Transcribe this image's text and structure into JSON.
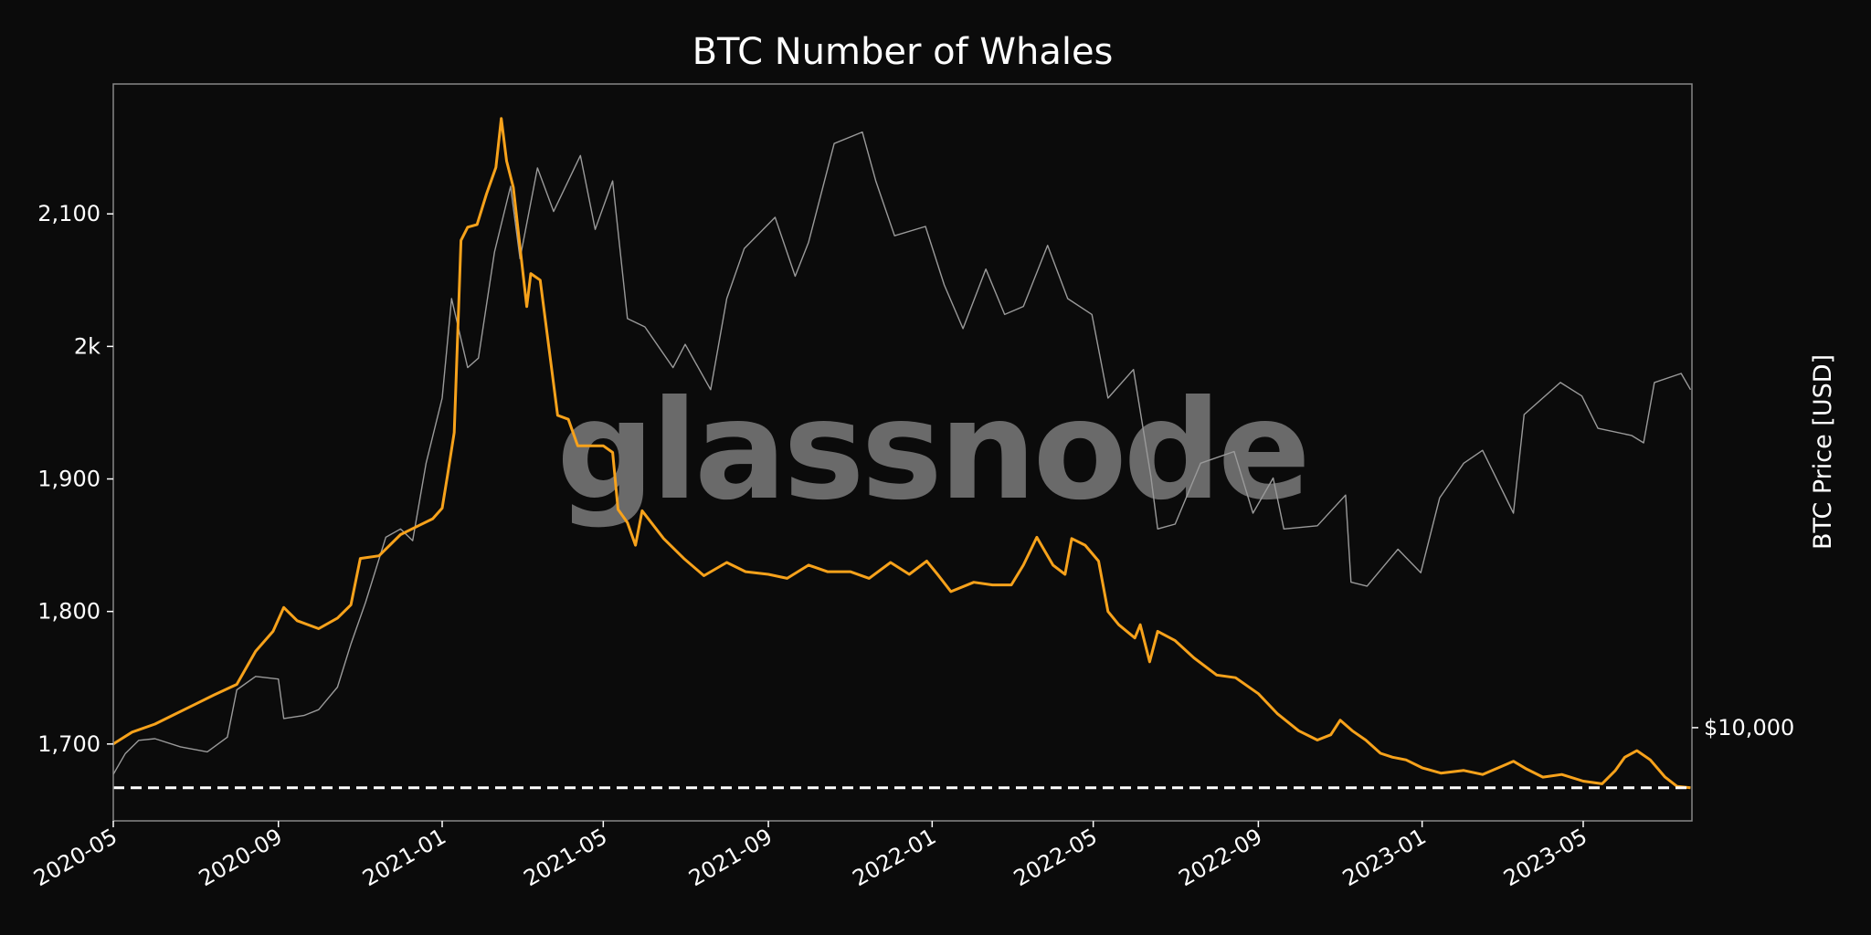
{
  "chart_data": {
    "type": "line",
    "title": "BTC Number of Whales",
    "watermark": "glassnode",
    "xlabel": "",
    "ylabel": "",
    "y2label": "BTC Price [USD]",
    "x_tick_labels": [
      "2020-05",
      "2020-09",
      "2021-01",
      "2021-05",
      "2021-09",
      "2022-01",
      "2022-05",
      "2022-09",
      "2023-01",
      "2023-05"
    ],
    "x_ticks": [
      "2020-05-01",
      "2020-09-01",
      "2021-01-01",
      "2021-05-01",
      "2021-09-01",
      "2022-01-01",
      "2022-05-01",
      "2022-09-01",
      "2023-01-01",
      "2023-05-01"
    ],
    "xlim": [
      "2020-05-01",
      "2023-07-21"
    ],
    "ylim": [
      1642,
      2198
    ],
    "y_ticks": [
      1700,
      1800,
      1900,
      2000,
      2100
    ],
    "y_tick_labels": [
      "1,700",
      "1,800",
      "1,900",
      "2k",
      "2,100"
    ],
    "y2_scale": "log",
    "y2lim": [
      7400,
      80000
    ],
    "y2_ticks": [
      10000
    ],
    "y2_tick_labels": [
      "$10,000"
    ],
    "grid": false,
    "colors": {
      "whales": "#f7a21b",
      "price": "#9a9a9a",
      "min_line": "#ffffff",
      "background": "#0b0b0b",
      "frame": "#888888"
    },
    "series": [
      {
        "axis": "left",
        "points": [
          [
            "2020-05-01",
            1700
          ],
          [
            "2020-05-15",
            1709
          ],
          [
            "2020-06-01",
            1715
          ],
          [
            "2020-06-15",
            1722
          ],
          [
            "2020-07-01",
            1730
          ],
          [
            "2020-07-15",
            1737
          ],
          [
            "2020-08-01",
            1745
          ],
          [
            "2020-08-15",
            1770
          ],
          [
            "2020-08-28",
            1785
          ],
          [
            "2020-09-05",
            1803
          ],
          [
            "2020-09-15",
            1793
          ],
          [
            "2020-10-01",
            1787
          ],
          [
            "2020-10-15",
            1795
          ],
          [
            "2020-10-25",
            1805
          ],
          [
            "2020-11-01",
            1840
          ],
          [
            "2020-11-15",
            1842
          ],
          [
            "2020-12-01",
            1858
          ],
          [
            "2020-12-15",
            1865
          ],
          [
            "2020-12-25",
            1870
          ],
          [
            "2021-01-01",
            1878
          ],
          [
            "2021-01-05",
            1903
          ],
          [
            "2021-01-10",
            1935
          ],
          [
            "2021-01-15",
            2080
          ],
          [
            "2021-01-20",
            2090
          ],
          [
            "2021-01-27",
            2092
          ],
          [
            "2021-02-03",
            2115
          ],
          [
            "2021-02-10",
            2135
          ],
          [
            "2021-02-14",
            2172
          ],
          [
            "2021-02-18",
            2140
          ],
          [
            "2021-02-23",
            2120
          ],
          [
            "2021-02-28",
            2075
          ],
          [
            "2021-03-05",
            2030
          ],
          [
            "2021-03-08",
            2055
          ],
          [
            "2021-03-15",
            2050
          ],
          [
            "2021-03-22",
            1995
          ],
          [
            "2021-03-28",
            1948
          ],
          [
            "2021-04-05",
            1945
          ],
          [
            "2021-04-12",
            1925
          ],
          [
            "2021-04-20",
            1925
          ],
          [
            "2021-05-01",
            1925
          ],
          [
            "2021-05-08",
            1920
          ],
          [
            "2021-05-12",
            1877
          ],
          [
            "2021-05-19",
            1867
          ],
          [
            "2021-05-25",
            1850
          ],
          [
            "2021-05-30",
            1876
          ],
          [
            "2021-06-15",
            1855
          ],
          [
            "2021-06-30",
            1840
          ],
          [
            "2021-07-15",
            1827
          ],
          [
            "2021-08-01",
            1837
          ],
          [
            "2021-08-15",
            1830
          ],
          [
            "2021-09-01",
            1828
          ],
          [
            "2021-09-15",
            1825
          ],
          [
            "2021-10-01",
            1835
          ],
          [
            "2021-10-15",
            1830
          ],
          [
            "2021-11-01",
            1830
          ],
          [
            "2021-11-15",
            1825
          ],
          [
            "2021-12-01",
            1837
          ],
          [
            "2021-12-15",
            1828
          ],
          [
            "2021-12-28",
            1838
          ],
          [
            "2022-01-05",
            1828
          ],
          [
            "2022-01-15",
            1815
          ],
          [
            "2022-02-01",
            1822
          ],
          [
            "2022-02-15",
            1820
          ],
          [
            "2022-03-01",
            1820
          ],
          [
            "2022-03-10",
            1835
          ],
          [
            "2022-03-20",
            1856
          ],
          [
            "2022-04-01",
            1835
          ],
          [
            "2022-04-10",
            1828
          ],
          [
            "2022-04-15",
            1855
          ],
          [
            "2022-04-25",
            1850
          ],
          [
            "2022-05-05",
            1838
          ],
          [
            "2022-05-12",
            1800
          ],
          [
            "2022-05-20",
            1790
          ],
          [
            "2022-06-01",
            1780
          ],
          [
            "2022-06-05",
            1790
          ],
          [
            "2022-06-12",
            1762
          ],
          [
            "2022-06-18",
            1785
          ],
          [
            "2022-07-01",
            1778
          ],
          [
            "2022-07-15",
            1765
          ],
          [
            "2022-08-01",
            1752
          ],
          [
            "2022-08-15",
            1750
          ],
          [
            "2022-09-01",
            1738
          ],
          [
            "2022-09-15",
            1723
          ],
          [
            "2022-10-01",
            1710
          ],
          [
            "2022-10-15",
            1703
          ],
          [
            "2022-10-25",
            1707
          ],
          [
            "2022-11-01",
            1718
          ],
          [
            "2022-11-10",
            1710
          ],
          [
            "2022-11-20",
            1703
          ],
          [
            "2022-12-01",
            1693
          ],
          [
            "2022-12-10",
            1690
          ],
          [
            "2022-12-20",
            1688
          ],
          [
            "2023-01-01",
            1682
          ],
          [
            "2023-01-15",
            1678
          ],
          [
            "2023-02-01",
            1680
          ],
          [
            "2023-02-15",
            1677
          ],
          [
            "2023-03-01",
            1683
          ],
          [
            "2023-03-10",
            1687
          ],
          [
            "2023-03-20",
            1681
          ],
          [
            "2023-04-01",
            1675
          ],
          [
            "2023-04-15",
            1677
          ],
          [
            "2023-05-01",
            1672
          ],
          [
            "2023-05-15",
            1670
          ],
          [
            "2023-05-25",
            1680
          ],
          [
            "2023-06-01",
            1690
          ],
          [
            "2023-06-10",
            1695
          ],
          [
            "2023-06-20",
            1688
          ],
          [
            "2023-07-01",
            1675
          ],
          [
            "2023-07-10",
            1668
          ],
          [
            "2023-07-20",
            1667
          ]
        ]
      },
      {
        "axis": "right",
        "points": [
          [
            "2020-05-01",
            8600
          ],
          [
            "2020-05-10",
            9200
          ],
          [
            "2020-05-20",
            9600
          ],
          [
            "2020-06-01",
            9650
          ],
          [
            "2020-06-20",
            9400
          ],
          [
            "2020-07-10",
            9250
          ],
          [
            "2020-07-25",
            9700
          ],
          [
            "2020-08-01",
            11300
          ],
          [
            "2020-08-15",
            11800
          ],
          [
            "2020-09-01",
            11700
          ],
          [
            "2020-09-05",
            10300
          ],
          [
            "2020-09-20",
            10400
          ],
          [
            "2020-10-01",
            10600
          ],
          [
            "2020-10-15",
            11400
          ],
          [
            "2020-10-25",
            13100
          ],
          [
            "2020-11-05",
            15000
          ],
          [
            "2020-11-20",
            18500
          ],
          [
            "2020-12-01",
            19000
          ],
          [
            "2020-12-10",
            18300
          ],
          [
            "2020-12-20",
            23500
          ],
          [
            "2021-01-01",
            29000
          ],
          [
            "2021-01-08",
            40000
          ],
          [
            "2021-01-20",
            32000
          ],
          [
            "2021-01-28",
            33000
          ],
          [
            "2021-02-09",
            46500
          ],
          [
            "2021-02-21",
            57500
          ],
          [
            "2021-02-28",
            45500
          ],
          [
            "2021-03-13",
            61000
          ],
          [
            "2021-03-25",
            53000
          ],
          [
            "2021-04-14",
            63500
          ],
          [
            "2021-04-25",
            50000
          ],
          [
            "2021-05-08",
            58500
          ],
          [
            "2021-05-19",
            37500
          ],
          [
            "2021-06-01",
            36500
          ],
          [
            "2021-06-22",
            32000
          ],
          [
            "2021-07-01",
            34500
          ],
          [
            "2021-07-20",
            29800
          ],
          [
            "2021-08-01",
            40000
          ],
          [
            "2021-08-14",
            47000
          ],
          [
            "2021-09-06",
            52000
          ],
          [
            "2021-09-21",
            43000
          ],
          [
            "2021-10-01",
            48000
          ],
          [
            "2021-10-20",
            66000
          ],
          [
            "2021-11-10",
            68500
          ],
          [
            "2021-11-20",
            58500
          ],
          [
            "2021-12-04",
            49000
          ],
          [
            "2021-12-27",
            50500
          ],
          [
            "2022-01-10",
            41800
          ],
          [
            "2022-01-24",
            36300
          ],
          [
            "2022-02-10",
            44000
          ],
          [
            "2022-02-24",
            38000
          ],
          [
            "2022-03-10",
            39000
          ],
          [
            "2022-03-28",
            47500
          ],
          [
            "2022-04-12",
            40000
          ],
          [
            "2022-04-30",
            38000
          ],
          [
            "2022-05-12",
            29000
          ],
          [
            "2022-05-31",
            31800
          ],
          [
            "2022-06-13",
            22500
          ],
          [
            "2022-06-18",
            19000
          ],
          [
            "2022-07-01",
            19300
          ],
          [
            "2022-07-20",
            23500
          ],
          [
            "2022-08-14",
            24400
          ],
          [
            "2022-08-28",
            20000
          ],
          [
            "2022-09-12",
            22400
          ],
          [
            "2022-09-20",
            19000
          ],
          [
            "2022-10-15",
            19200
          ],
          [
            "2022-11-05",
            21200
          ],
          [
            "2022-11-09",
            16000
          ],
          [
            "2022-11-21",
            15800
          ],
          [
            "2022-12-14",
            17800
          ],
          [
            "2022-12-31",
            16500
          ],
          [
            "2023-01-14",
            21000
          ],
          [
            "2023-02-01",
            23500
          ],
          [
            "2023-02-15",
            24500
          ],
          [
            "2023-03-10",
            20000
          ],
          [
            "2023-03-18",
            27500
          ],
          [
            "2023-04-14",
            30500
          ],
          [
            "2023-04-30",
            29200
          ],
          [
            "2023-05-12",
            26300
          ],
          [
            "2023-06-06",
            25700
          ],
          [
            "2023-06-15",
            25100
          ],
          [
            "2023-06-23",
            30500
          ],
          [
            "2023-07-13",
            31400
          ],
          [
            "2023-07-20",
            29800
          ]
        ]
      }
    ],
    "reference_line": {
      "value": 1667,
      "axis": "left",
      "style": "dashed"
    }
  }
}
